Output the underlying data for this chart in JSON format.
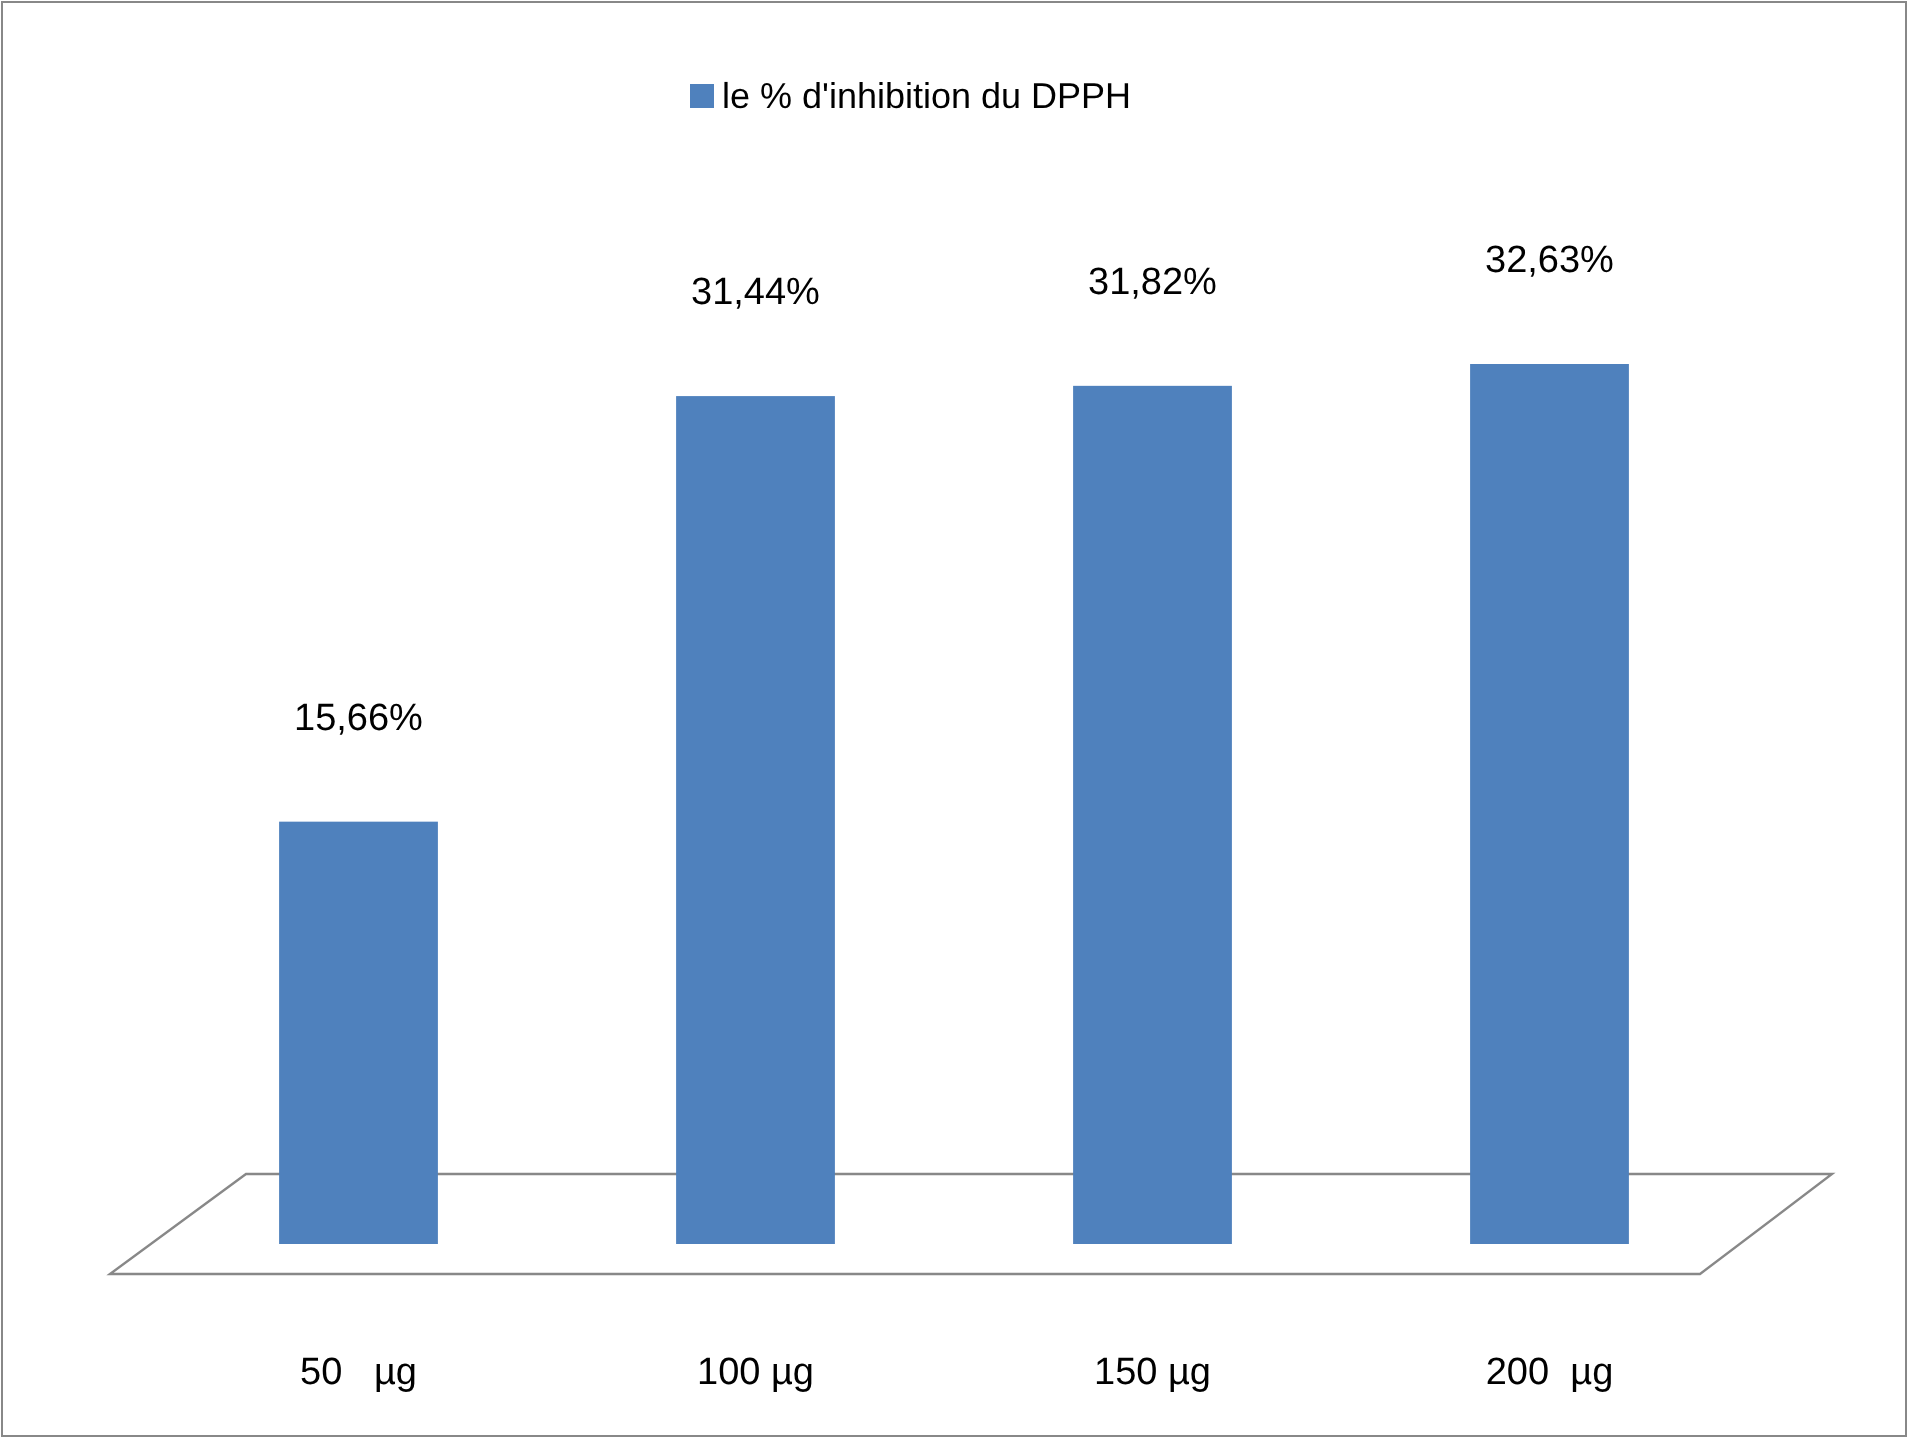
{
  "chart_data": {
    "type": "bar",
    "categories": [
      "50   µg",
      "100 µg",
      "150 µg",
      "200  µg"
    ],
    "series": [
      {
        "name": "le % d'inhibition du DPPH",
        "color": "#4f81bd",
        "values": [
          15.66,
          31.44,
          31.82,
          32.63
        ],
        "value_labels": [
          "15,66%",
          "31,44%",
          "31,82%",
          "32,63%"
        ]
      }
    ],
    "legend": "top",
    "grid": false
  }
}
